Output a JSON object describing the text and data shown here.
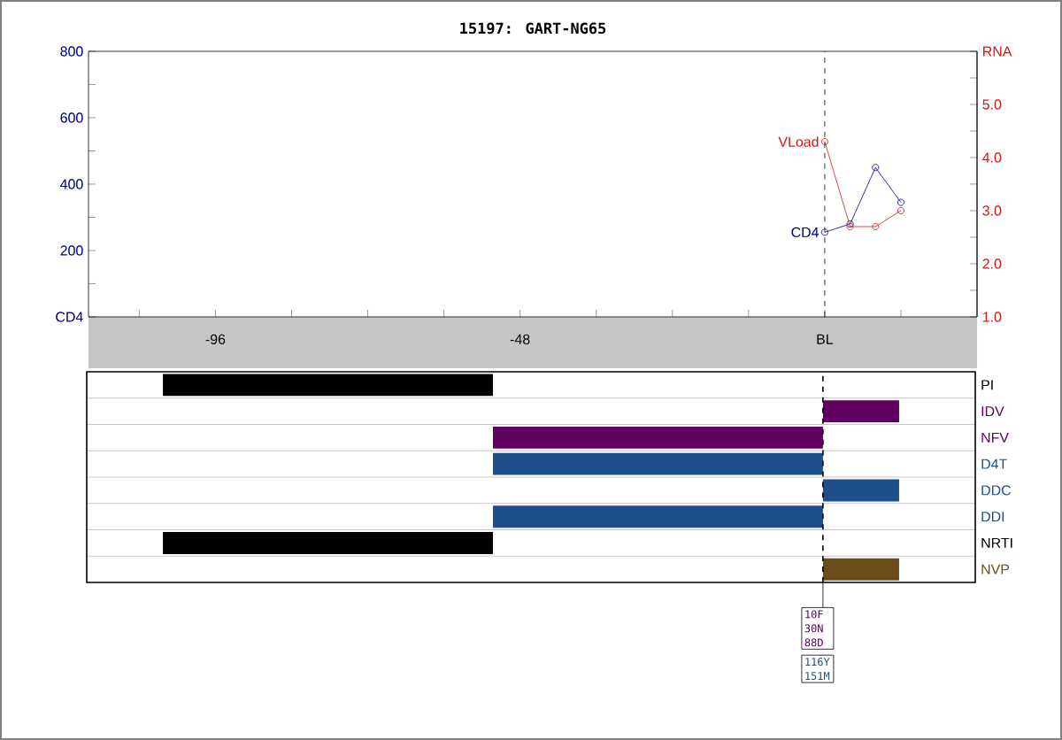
{
  "chart_data": [
    {
      "type": "line",
      "title": "15197: GART-NG65",
      "marker": "circle",
      "series": [
        {
          "name": "CD4",
          "color": "#000080",
          "x": [
            0,
            4,
            8,
            12
          ],
          "values": [
            255,
            280,
            450,
            345
          ]
        },
        {
          "name": "VLoad",
          "color": "#d01818",
          "axis": "y2",
          "x": [
            0,
            4,
            8,
            12
          ],
          "values": [
            4.3,
            2.7,
            2.7,
            3.0
          ]
        }
      ],
      "xlim": [
        -116,
        24
      ],
      "xticks": [
        {
          "value": -108,
          "label": null
        },
        -96,
        {
          "value": -84,
          "label": null
        },
        {
          "value": -72,
          "label": null
        },
        {
          "value": -60,
          "label": null
        },
        -48,
        {
          "value": -36,
          "label": null
        },
        {
          "value": -24,
          "label": null
        },
        {
          "value": -12,
          "label": null
        },
        {
          "value": 0,
          "label": "BL"
        },
        {
          "value": 12,
          "label": null
        }
      ],
      "ylim": [
        0,
        800
      ],
      "yticks": [
        {
          "value": 0,
          "label": "CD4"
        },
        {
          "value": 100,
          "label": null
        },
        200,
        {
          "value": 300,
          "label": null
        },
        400,
        {
          "value": 500,
          "label": null
        },
        600,
        {
          "value": 700,
          "label": null
        },
        800
      ],
      "y2lim": [
        1,
        6
      ],
      "y2ticks": [
        {
          "value": 1,
          "label": "1.0"
        },
        {
          "value": 1.5,
          "label": null
        },
        {
          "value": 2,
          "label": "2.0"
        },
        {
          "value": 2.5,
          "label": null
        },
        {
          "value": 3,
          "label": "3.0"
        },
        {
          "value": 3.5,
          "label": null
        },
        {
          "value": 4,
          "label": "4.0"
        },
        {
          "value": 4.5,
          "label": null
        },
        {
          "value": 5,
          "label": "5.0"
        },
        {
          "value": 5.5,
          "label": null
        },
        {
          "value": 6,
          "label": "RNA"
        }
      ],
      "ref_lines": [
        {
          "axis": "x",
          "value": 0,
          "line_style": "dashed"
        }
      ]
    },
    {
      "type": "bar",
      "orientation": "horizontal",
      "tick_labels": "y",
      "grid": "y",
      "categories": [
        "PI",
        "IDV",
        "NFV",
        "D4T",
        "DDC",
        "DDI",
        "NRTI",
        "NVP"
      ],
      "values": [
        52,
        12,
        52,
        52,
        12,
        52,
        52,
        12
      ],
      "base": [
        -104,
        0,
        -52,
        -52,
        0,
        -52,
        -104,
        0
      ],
      "colors": [
        "#000000",
        "#600060",
        "#600060",
        "#1f4e8c",
        "#1f4e8c",
        "#1f4e8c",
        "#000000",
        "#6b4c1a"
      ],
      "xlim": [
        -116,
        24
      ],
      "ref_lines": [
        {
          "axis": "x",
          "value": 0,
          "line_style": "dashed"
        }
      ],
      "annotations": [
        "10F 30N 88D",
        "116Y 151M"
      ]
    }
  ]
}
